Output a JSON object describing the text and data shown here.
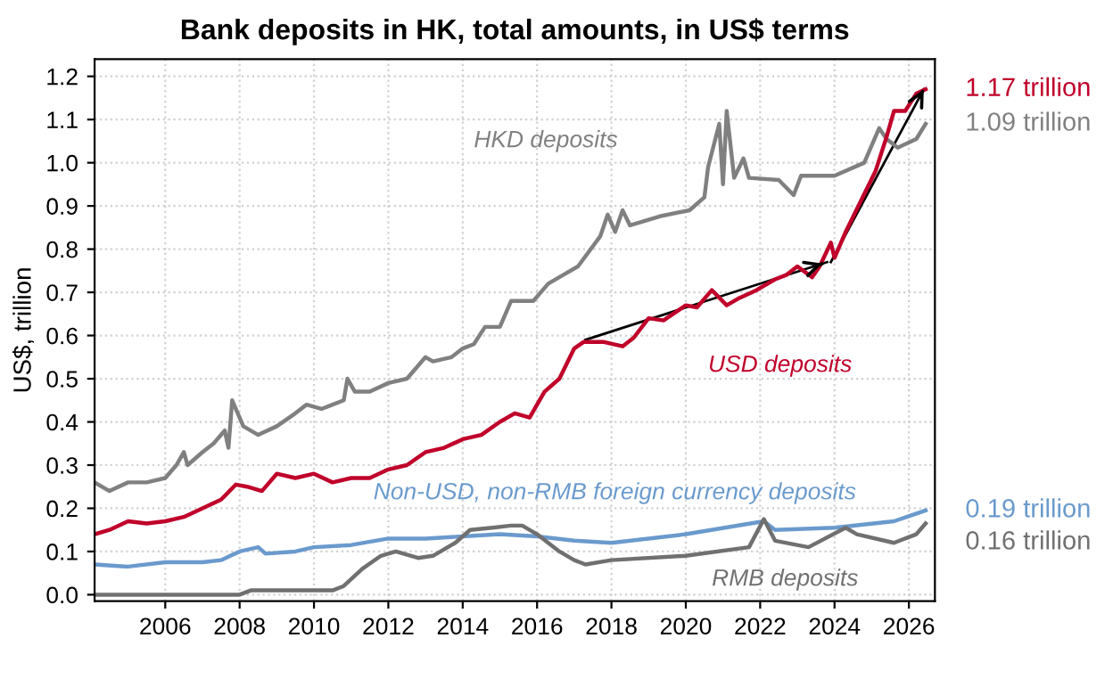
{
  "chart_data": {
    "type": "line",
    "title": "Bank deposits in HK, total amounts, in US$ terms",
    "ylabel": "US$, trillion",
    "xlim": [
      2004.1,
      2026.7
    ],
    "xticks": [
      2006,
      2008,
      2010,
      2012,
      2014,
      2016,
      2018,
      2020,
      2022,
      2024,
      2026
    ],
    "ylim": [
      -0.015,
      1.24
    ],
    "yticks": [
      {
        "value": 0,
        "label": "0.0"
      },
      0.1,
      0.2,
      0.3,
      0.4,
      0.5,
      0.6,
      0.7,
      0.8,
      0.9,
      {
        "value": 1,
        "label": "1.0"
      },
      1.1,
      1.2
    ],
    "grid": true,
    "legend": false,
    "line_style": "solid",
    "marker": "none",
    "series": [
      {
        "name": "HKD deposits",
        "color": "#808080",
        "x": [
          2004.1,
          2004.5,
          2005.0,
          2005.5,
          2006.0,
          2006.3,
          2006.5,
          2006.6,
          2007.0,
          2007.3,
          2007.6,
          2007.7,
          2007.8,
          2008.1,
          2008.5,
          2009.0,
          2009.5,
          2009.8,
          2010.2,
          2010.5,
          2010.8,
          2010.9,
          2011.1,
          2011.5,
          2012.0,
          2012.5,
          2013.0,
          2013.2,
          2013.7,
          2014.0,
          2014.3,
          2014.6,
          2015.0,
          2015.3,
          2015.9,
          2016.3,
          2016.7,
          2017.1,
          2017.7,
          2017.9,
          2018.1,
          2018.3,
          2018.5,
          2019.3,
          2020.1,
          2020.5,
          2020.6,
          2020.9,
          2021.0,
          2021.1,
          2021.3,
          2021.55,
          2021.7,
          2022.5,
          2022.9,
          2023.1,
          2024.0,
          2024.8,
          2025.2,
          2025.4,
          2025.7,
          2026.2,
          2026.45
        ],
        "values": [
          0.26,
          0.24,
          0.26,
          0.26,
          0.27,
          0.3,
          0.33,
          0.3,
          0.33,
          0.35,
          0.38,
          0.34,
          0.45,
          0.39,
          0.37,
          0.39,
          0.42,
          0.44,
          0.43,
          0.44,
          0.45,
          0.5,
          0.47,
          0.47,
          0.49,
          0.5,
          0.55,
          0.54,
          0.55,
          0.57,
          0.58,
          0.62,
          0.62,
          0.68,
          0.68,
          0.72,
          0.74,
          0.76,
          0.83,
          0.88,
          0.84,
          0.89,
          0.855,
          0.876,
          0.89,
          0.92,
          0.99,
          1.09,
          0.95,
          1.12,
          0.965,
          1.01,
          0.965,
          0.96,
          0.925,
          0.97,
          0.97,
          1.0,
          1.08,
          1.055,
          1.035,
          1.055,
          1.09
        ]
      },
      {
        "name": "USD deposits",
        "color": "#c0002a",
        "x": [
          2004.1,
          2004.5,
          2005.0,
          2005.5,
          2006.0,
          2006.5,
          2007.0,
          2007.5,
          2007.9,
          2008.2,
          2008.6,
          2009.0,
          2009.5,
          2010.0,
          2010.5,
          2011.0,
          2011.5,
          2012.0,
          2012.5,
          2013.0,
          2013.5,
          2014.0,
          2014.5,
          2015.0,
          2015.4,
          2015.8,
          2016.2,
          2016.6,
          2017.0,
          2017.25,
          2017.8,
          2018.3,
          2018.6,
          2019.0,
          2019.4,
          2020.0,
          2020.3,
          2020.7,
          2021.1,
          2021.4,
          2021.9,
          2022.4,
          2022.7,
          2023.0,
          2023.4,
          2023.6,
          2023.9,
          2024.0,
          2024.3,
          2024.7,
          2025.1,
          2025.4,
          2025.6,
          2025.9,
          2026.2,
          2026.45
        ],
        "values": [
          0.14,
          0.15,
          0.17,
          0.165,
          0.17,
          0.18,
          0.2,
          0.22,
          0.255,
          0.25,
          0.24,
          0.28,
          0.27,
          0.28,
          0.26,
          0.27,
          0.27,
          0.29,
          0.3,
          0.33,
          0.34,
          0.36,
          0.37,
          0.4,
          0.42,
          0.41,
          0.47,
          0.5,
          0.57,
          0.585,
          0.585,
          0.575,
          0.595,
          0.64,
          0.635,
          0.67,
          0.665,
          0.705,
          0.67,
          0.685,
          0.705,
          0.73,
          0.74,
          0.76,
          0.735,
          0.76,
          0.815,
          0.78,
          0.84,
          0.91,
          0.98,
          1.06,
          1.12,
          1.12,
          1.16,
          1.17
        ]
      },
      {
        "name": "Non-USD, non-RMB foreign currency deposits",
        "color": "#6a9acd",
        "x": [
          2004.1,
          2005.0,
          2006.0,
          2007.0,
          2007.5,
          2008.0,
          2008.5,
          2008.7,
          2009.5,
          2010.0,
          2011.0,
          2012.0,
          2013.0,
          2014.0,
          2015.0,
          2016.0,
          2017.0,
          2018.0,
          2020.0,
          2022.1,
          2022.4,
          2024.0,
          2025.6,
          2026.45
        ],
        "values": [
          0.07,
          0.065,
          0.075,
          0.075,
          0.08,
          0.1,
          0.11,
          0.095,
          0.1,
          0.11,
          0.115,
          0.13,
          0.13,
          0.135,
          0.14,
          0.135,
          0.125,
          0.12,
          0.14,
          0.17,
          0.15,
          0.155,
          0.17,
          0.195
        ]
      },
      {
        "name": "RMB deposits",
        "color": "#707070",
        "x": [
          2004.1,
          2008.0,
          2008.3,
          2010.5,
          2010.8,
          2011.3,
          2011.8,
          2012.2,
          2012.8,
          2013.2,
          2013.8,
          2014.2,
          2014.8,
          2015.3,
          2015.6,
          2016.0,
          2016.6,
          2017.0,
          2017.3,
          2018.0,
          2020.0,
          2021.7,
          2022.1,
          2022.4,
          2023.3,
          2024.3,
          2024.6,
          2025.6,
          2026.2,
          2026.45
        ],
        "values": [
          0.0,
          0.0,
          0.01,
          0.01,
          0.02,
          0.06,
          0.09,
          0.1,
          0.085,
          0.09,
          0.12,
          0.15,
          0.155,
          0.16,
          0.16,
          0.14,
          0.1,
          0.08,
          0.07,
          0.08,
          0.09,
          0.11,
          0.175,
          0.125,
          0.11,
          0.155,
          0.14,
          0.12,
          0.14,
          0.165
        ]
      },
      {
        "color": "#000000",
        "x": [
          2017.3,
          2023.8
        ],
        "values": [
          0.59,
          0.77
        ]
      },
      {
        "color": "#000000",
        "x": [
          2023.9,
          2026.4
        ],
        "values": [
          0.77,
          1.17
        ]
      }
    ],
    "annotations": [
      "1.17 trillion",
      "1.09 trillion",
      "0.19 trillion",
      "0.16 trillion"
    ]
  }
}
